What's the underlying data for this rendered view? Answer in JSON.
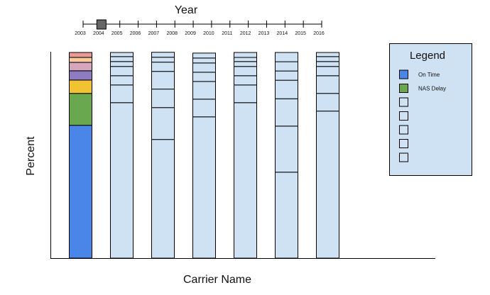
{
  "timeline": {
    "title": "Year",
    "years": [
      "2003",
      "2004",
      "2005",
      "2006",
      "2007",
      "2008",
      "2009",
      "2010",
      "2011",
      "2012",
      "2013",
      "2014",
      "2015",
      "2016"
    ],
    "selected": "2004"
  },
  "legend": {
    "title": "Legend",
    "items": [
      {
        "label": "On Time",
        "color": "#4a86e8"
      },
      {
        "label": "NAS Delay",
        "color": "#6aa84f"
      },
      {
        "label": "",
        "color": null
      },
      {
        "label": "",
        "color": null
      },
      {
        "label": "",
        "color": null
      },
      {
        "label": "",
        "color": null
      },
      {
        "label": "",
        "color": null
      }
    ]
  },
  "colors": {
    "placeholder_fill": "#cfe2f3",
    "stroke": "#000000",
    "timeline_handle": "#666666"
  },
  "chart_data": {
    "type": "bar",
    "stacked": true,
    "xlabel": "Carrier Name",
    "ylabel": "Percent",
    "ylim": [
      0,
      100
    ],
    "grid": false,
    "legend_position": "right",
    "categories": [
      "",
      "",
      "",
      "",
      "",
      "",
      ""
    ],
    "highlighted_category_index": 0,
    "segment_colors": [
      "#4a86e8",
      "#6aa84f",
      "#f1c232",
      "#8e7cc3",
      "#d5a6bd",
      "#f9cb9c",
      "#ea9999"
    ],
    "bars": [
      [
        64.6,
        15.5,
        6.5,
        4.5,
        4.1,
        2.4,
        2.4
      ],
      [
        75.6,
        8.6,
        4.5,
        4.5,
        2.4,
        2.4,
        2.0
      ],
      [
        57.7,
        15.5,
        9.0,
        8.6,
        4.5,
        2.4,
        2.4
      ],
      [
        68.7,
        8.6,
        8.6,
        4.5,
        4.5,
        2.4,
        2.4
      ],
      [
        75.6,
        8.6,
        4.5,
        4.5,
        2.4,
        2.0,
        2.4
      ],
      [
        41.8,
        22.4,
        13.3,
        9.0,
        4.5,
        4.5,
        4.5
      ],
      [
        71.5,
        8.6,
        8.6,
        4.5,
        2.4,
        2.4,
        2.0
      ]
    ]
  }
}
